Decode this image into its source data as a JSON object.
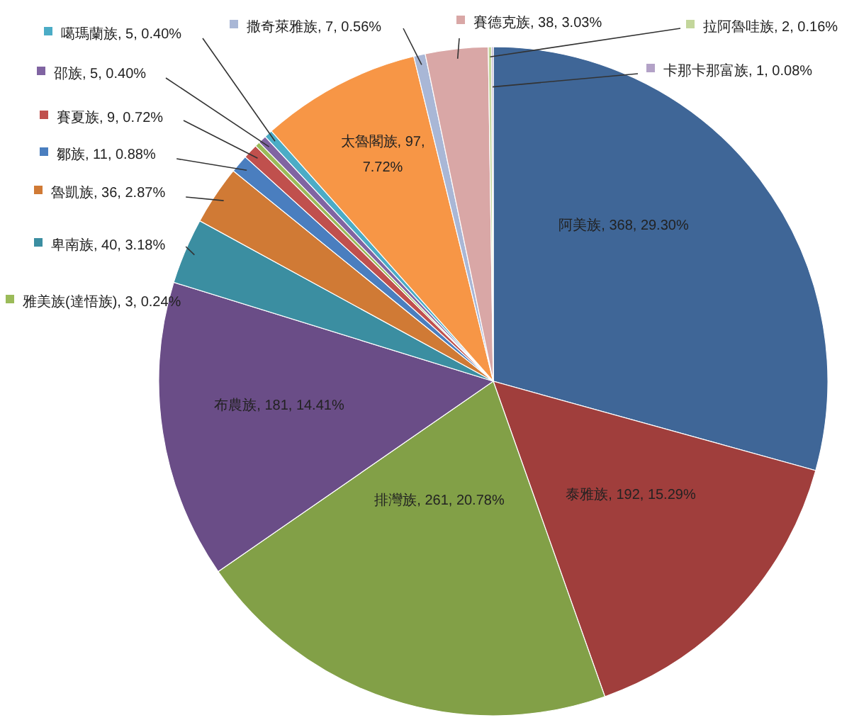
{
  "chart_data": {
    "type": "pie",
    "categories": [
      "阿美族",
      "泰雅族",
      "排灣族",
      "布農族",
      "卑南族",
      "魯凱族",
      "鄒族",
      "賽夏族",
      "雅美族(達悟族)",
      "邵族",
      "噶瑪蘭族",
      "太魯閣族",
      "撒奇萊雅族",
      "賽德克族",
      "拉阿魯哇族",
      "卡那卡那富族"
    ],
    "values": [
      368,
      192,
      261,
      181,
      40,
      36,
      11,
      9,
      3,
      5,
      5,
      97,
      7,
      38,
      2,
      1
    ],
    "value_labels": [
      "368, 29.30%",
      "192, 15.29%",
      "261, 20.78%",
      "181, 14.41%",
      "40, 3.18%",
      "36, 2.87%",
      "11, 0.88%",
      "9, 0.72%",
      "3, 0.24%",
      "5, 0.40%",
      "5, 0.40%",
      "97, 7.72%",
      "7, 0.56%",
      "38, 3.03%",
      "2, 0.16%",
      "1, 0.08%"
    ],
    "colors": [
      "#3f6697",
      "#a03e3c",
      "#82a047",
      "#6a4d87",
      "#3b8ea1",
      "#d07a35",
      "#4a7ebf",
      "#c0504d",
      "#9bbb59",
      "#8064a2",
      "#4bacc6",
      "#f79646",
      "#a9b7d6",
      "#d9a7a6",
      "#c3d69b",
      "#b3a2c7"
    ],
    "data_labels": false,
    "legend": "top left"
  }
}
